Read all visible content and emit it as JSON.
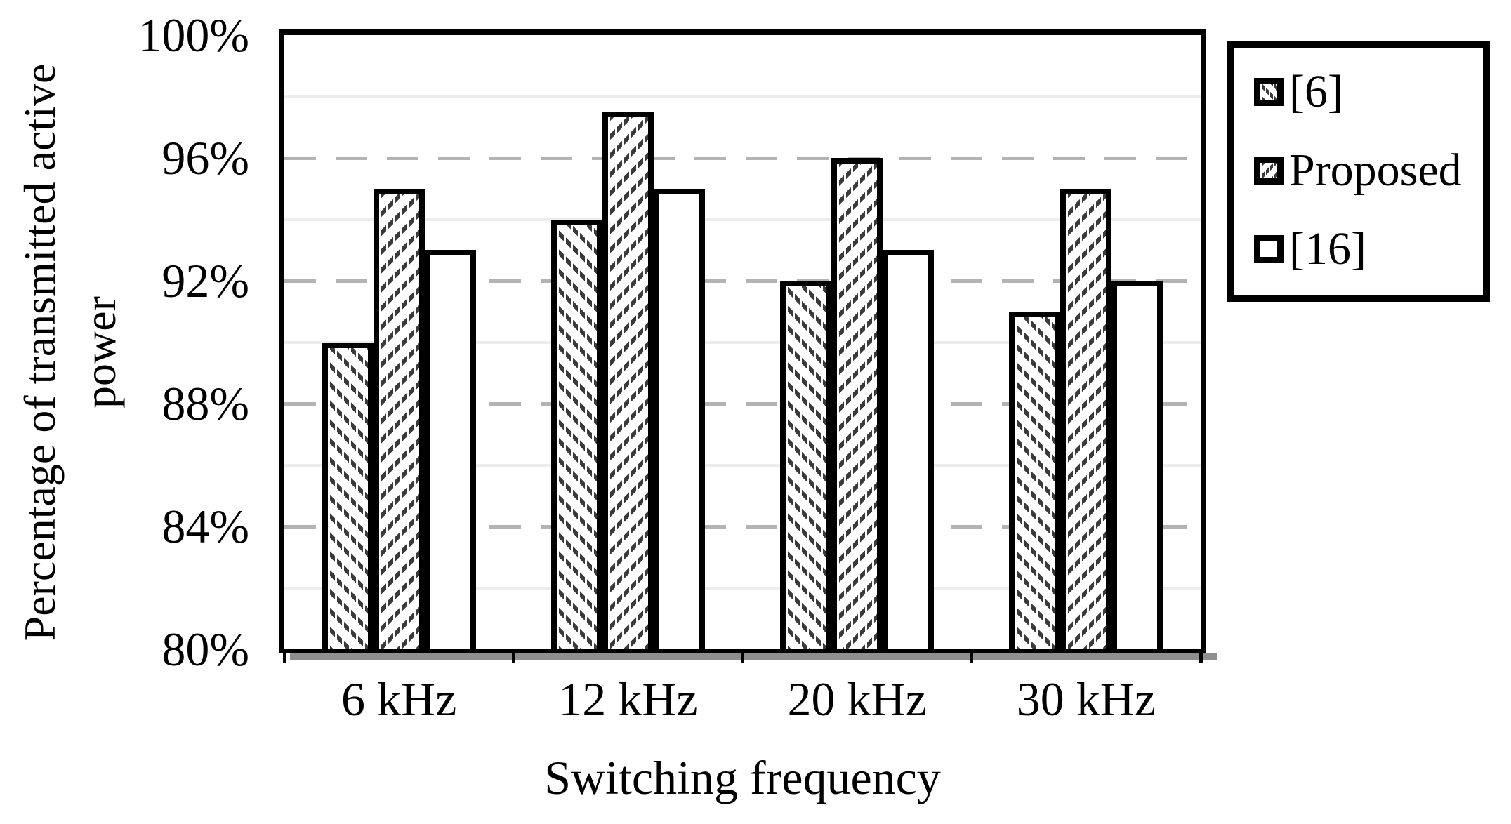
{
  "chart_data": {
    "type": "bar",
    "title": "",
    "xlabel": "Switching frequency",
    "ylabel": "Percentage of transmitted active power",
    "ylabel_lines": [
      "Percentage of transmitted active",
      "power"
    ],
    "categories": [
      "6 kHz",
      "12 kHz",
      "20 kHz",
      "30 kHz"
    ],
    "series": [
      {
        "name": "[6]",
        "pattern": "diagonal-down",
        "values": [
          90,
          94,
          92,
          91
        ]
      },
      {
        "name": "Proposed",
        "pattern": "diagonal-up",
        "values": [
          95,
          97.5,
          96,
          95
        ]
      },
      {
        "name": "[16]",
        "pattern": "none",
        "values": [
          93,
          95,
          93,
          92
        ]
      }
    ],
    "ylim": [
      80,
      100
    ],
    "y_ticks": [
      {
        "value": 100,
        "label": "100%"
      },
      {
        "value": 96,
        "label": "96%"
      },
      {
        "value": 92,
        "label": "92%"
      },
      {
        "value": 88,
        "label": "88%"
      },
      {
        "value": 84,
        "label": "84%"
      },
      {
        "value": 80,
        "label": "80%"
      }
    ],
    "major_gridlines": [
      96,
      92,
      88,
      84
    ],
    "minor_gridlines": [
      98,
      94,
      90,
      86,
      82
    ],
    "grid": true,
    "legend_position": "right",
    "legend_entries": [
      "[6]",
      "Proposed",
      "[16]"
    ],
    "colors": {
      "bar_outline": "#000000",
      "hatch": "#3a3a3a",
      "major_gridline": "#b3b3b3",
      "minor_gridline": "#ececec",
      "axis_shadow": "#8f8f8f",
      "background": "#ffffff"
    }
  }
}
